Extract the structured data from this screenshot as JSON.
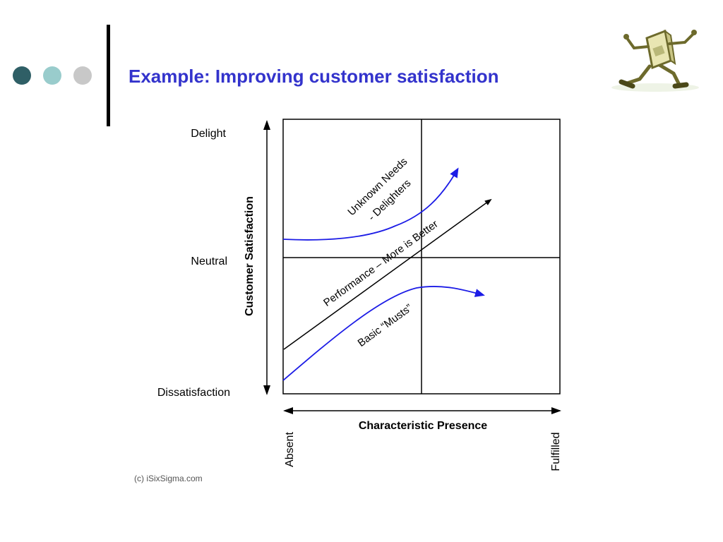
{
  "slide": {
    "title": "Example: Improving customer satisfaction",
    "dot_colors": [
      "#2f5f66",
      "#99cccc",
      "#c8c8c8"
    ]
  },
  "diagram": {
    "y_axis_label": "Customer Satisfaction",
    "y_levels": [
      "Delight",
      "Neutral",
      "Dissatisfaction"
    ],
    "x_axis_label": "Characteristic Presence",
    "x_ends": [
      "Absent",
      "Fulfilled"
    ],
    "curves": {
      "delighters_line1": "Unknown Needs",
      "delighters_line2": "- Delighters",
      "performance": "Performance – More is Better",
      "basic": "Basic “Musts”"
    },
    "copyright": "(c) iSixSigma.com",
    "colors": {
      "curve": "#1c1ce6",
      "line": "#000000"
    }
  },
  "logo": {
    "icon": "running-computer-icon"
  }
}
